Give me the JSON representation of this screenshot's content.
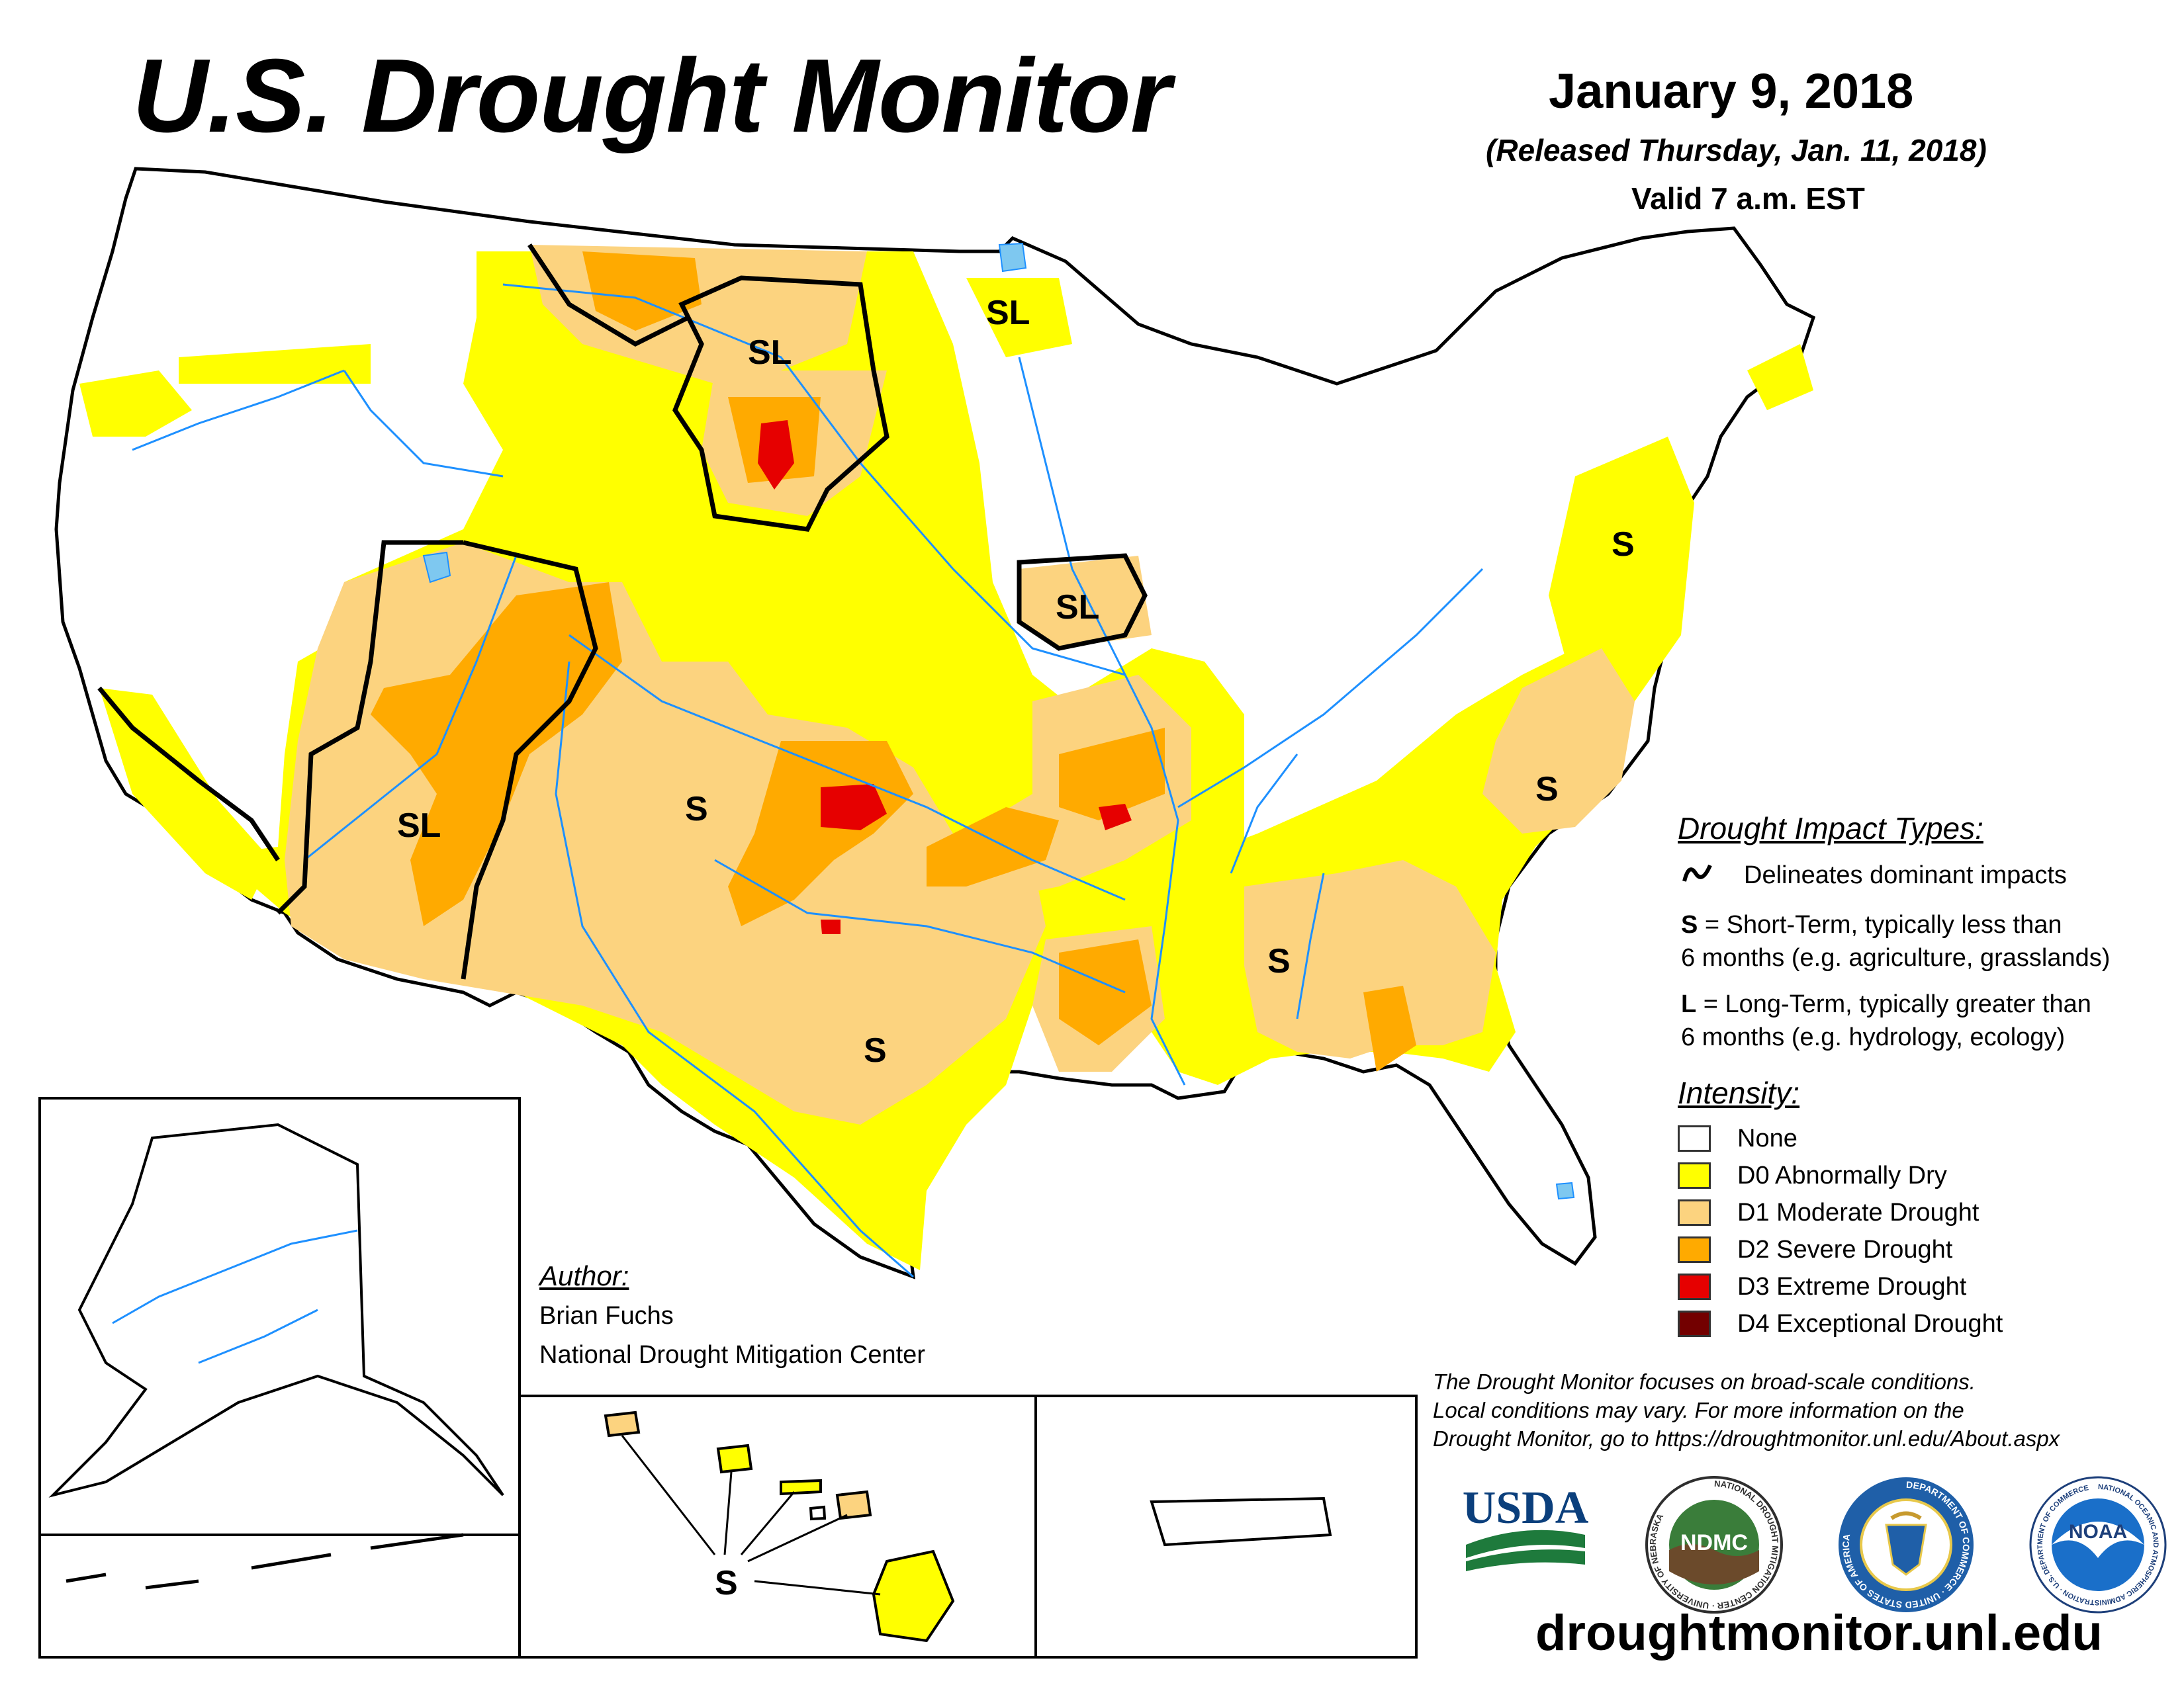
{
  "header": {
    "title": "U.S. Drought Monitor",
    "date": "January 9, 2018",
    "released": "(Released Thursday, Jan. 11, 2018)",
    "valid": "Valid 7 a.m. EST"
  },
  "map": {
    "impact_labels": {
      "montana": "SL",
      "minnesota": "SL",
      "iowa": "SL",
      "arizona": "SL",
      "new_mexico": "S",
      "texas": "S",
      "mississippi": "S",
      "north_carolina": "S",
      "pennsylvania": "S",
      "hawaii": "S"
    }
  },
  "impact_legend": {
    "title": "Drought Impact Types:",
    "delineates": "Delineates dominant impacts",
    "short_term_key": "S",
    "short_term_line1": " = Short-Term, typically less than",
    "short_term_line2": "6 months (e.g. agriculture, grasslands)",
    "long_term_key": "L",
    "long_term_line1": " = Long-Term, typically greater than",
    "long_term_line2": "6 months (e.g. hydrology, ecology)"
  },
  "intensity_legend": {
    "title": "Intensity:",
    "items": [
      {
        "label": "None",
        "color": "#ffffff"
      },
      {
        "label": "D0 Abnormally Dry",
        "color": "#ffff00"
      },
      {
        "label": "D1 Moderate Drought",
        "color": "#fcd37f"
      },
      {
        "label": "D2 Severe Drought",
        "color": "#ffaa00"
      },
      {
        "label": "D3 Extreme Drought",
        "color": "#e60000"
      },
      {
        "label": "D4 Exceptional Drought",
        "color": "#730000"
      }
    ]
  },
  "author": {
    "title": "Author:",
    "name": "Brian Fuchs",
    "org": "National Drought Mitigation Center"
  },
  "disclaimer": {
    "line1": "The Drought Monitor focuses on broad-scale conditions.",
    "line2": "Local conditions may vary. For more information on the",
    "line3": "Drought Monitor, go to https://droughtmonitor.unl.edu/About.aspx"
  },
  "logos": {
    "usda": "USDA",
    "ndmc": "NDMC",
    "ndmc_ring": "NATIONAL DROUGHT MITIGATION CENTER · UNIVERSITY OF NEBRASKA",
    "commerce_ring": "DEPARTMENT OF COMMERCE · UNITED STATES OF AMERICA",
    "noaa": "NOAA",
    "noaa_ring": "NATIONAL OCEANIC AND ATMOSPHERIC ADMINISTRATION · U.S. DEPARTMENT OF COMMERCE"
  },
  "footer": {
    "url": "droughtmonitor.unl.edu"
  },
  "colors": {
    "none": "#ffffff",
    "d0": "#ffff00",
    "d1": "#fcd37f",
    "d2": "#ffaa00",
    "d3": "#e60000",
    "d4": "#730000",
    "water": "#1e90ff",
    "lake": "#7ec8f0"
  }
}
